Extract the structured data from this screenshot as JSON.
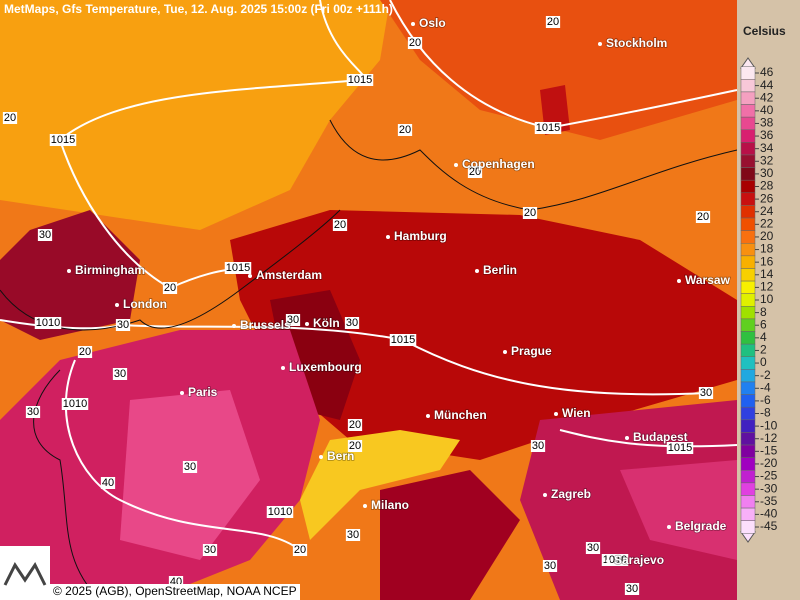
{
  "header": {
    "title": "MetMaps, Gfs Temperature, Tue, 12. Aug. 2025 15:00z (Fri 00z +111h)"
  },
  "footer": {
    "credit": "© 2025 (AGB), OpenStreetMap, NOAA NCEP"
  },
  "cities": [
    "Oslo",
    "Stockholm",
    "Copenhagen",
    "Hamburg",
    "Birmingham",
    "Amsterdam",
    "Berlin",
    "Warsaw",
    "London",
    "Brussels",
    "Köln",
    "Prague",
    "Luxembourg",
    "Paris",
    "München",
    "Wien",
    "Budapest",
    "Bern",
    "Zagreb",
    "Milano",
    "Belgrade",
    "Sarajevo"
  ],
  "contour_labels": [
    20,
    20,
    1015,
    20,
    1015,
    20,
    1015,
    20,
    20,
    20,
    20,
    30,
    1015,
    20,
    1010,
    30,
    30,
    30,
    1015,
    20,
    30,
    30,
    1010,
    30,
    20,
    20,
    30,
    1015,
    40,
    30,
    1010,
    30,
    20,
    30,
    30,
    1010,
    30,
    30,
    40
  ],
  "legend": {
    "title": "Celsius",
    "ticks": [
      46,
      44,
      42,
      40,
      38,
      36,
      34,
      32,
      30,
      28,
      26,
      24,
      22,
      20,
      18,
      16,
      14,
      12,
      10,
      8,
      6,
      4,
      2,
      0,
      -2,
      -4,
      -6,
      -8,
      -10,
      -12,
      -15,
      -20,
      -25,
      -30,
      -35,
      -40,
      -45
    ],
    "colors": [
      "#fce8f0",
      "#f8c8d8",
      "#f4a0c0",
      "#f070a8",
      "#e84890",
      "#d82070",
      "#b81048",
      "#981030",
      "#800818",
      "#a80000",
      "#c81010",
      "#e03000",
      "#f05000",
      "#f87010",
      "#f89010",
      "#f8b000",
      "#f8d000",
      "#f8f000",
      "#e0f000",
      "#a0e000",
      "#60d020",
      "#30c040",
      "#20c080",
      "#20c0c0",
      "#20a8e0",
      "#2080f0",
      "#2060f0",
      "#3040e0",
      "#4020c0",
      "#6010a0",
      "#8000a0",
      "#a000c0",
      "#c020d0",
      "#e040e0",
      "#f080f0",
      "#f8b0f8",
      "#fce0fc"
    ]
  }
}
